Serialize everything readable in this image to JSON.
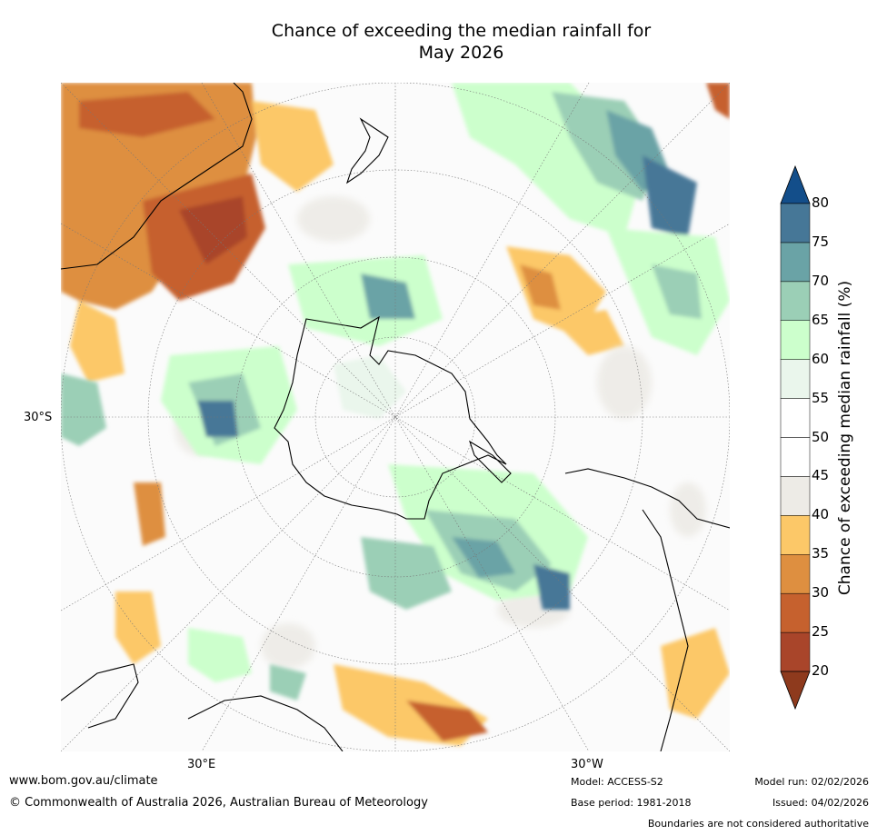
{
  "title_line1": "Chance of exceeding the median rainfall for",
  "title_line2": "May 2026",
  "map": {
    "lat_label": "30°S",
    "lon_labels": [
      "30°E",
      "30°W"
    ]
  },
  "colorbar": {
    "label": "Chance of exceeding median rainfall (%)",
    "ticks": [
      "20",
      "25",
      "30",
      "35",
      "40",
      "45",
      "50",
      "55",
      "60",
      "65",
      "70",
      "75",
      "80"
    ],
    "colors": [
      "#8e3a1d",
      "#a9452a",
      "#c6612e",
      "#de8f40",
      "#fcc868",
      "#edebe6",
      "#ffffff",
      "#ffffff",
      "#eaf6ec",
      "#ccffcc",
      "#9bcfb6",
      "#6aa3a6",
      "#467797",
      "#134e8a"
    ]
  },
  "footer": {
    "website": "www.bom.gov.au/climate",
    "copyright": "© Commonwealth of Australia 2026, Australian Bureau of Meteorology",
    "model": "Model: ACCESS-S2",
    "base_period": "Base period: 1981-2018",
    "model_run": "Model run: 02/02/2026",
    "issued": "Issued: 04/02/2026",
    "disclaimer": "Boundaries are not considered authoritative"
  }
}
